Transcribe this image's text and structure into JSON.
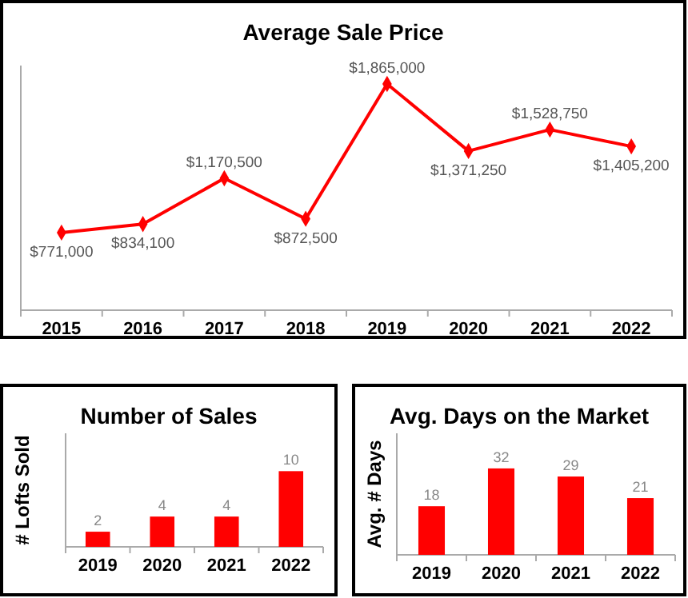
{
  "chart_data": [
    {
      "type": "line",
      "title": "Average Sale Price",
      "categories": [
        "2015",
        "2016",
        "2017",
        "2018",
        "2019",
        "2020",
        "2021",
        "2022"
      ],
      "series": [
        {
          "color": "#ff0000",
          "values": [
            771000,
            834100,
            1170500,
            872500,
            1865000,
            1371250,
            1528750,
            1405200
          ],
          "value_labels": [
            "$771,000",
            "$834,100",
            "$1,170,500",
            "$872,500",
            "$1,865,000",
            "$1,371,250",
            "$1,528,750",
            "$1,405,200"
          ]
        }
      ],
      "ylim": [
        200000,
        2000000
      ],
      "tick_labels": "x",
      "marker": "diamond",
      "line_style": "solid"
    },
    {
      "type": "bar",
      "title": "Number of Sales",
      "ylabel": "# Lofts Sold",
      "categories": [
        "2019",
        "2020",
        "2021",
        "2022"
      ],
      "values": [
        2,
        4,
        4,
        10
      ],
      "color": "#ff0000",
      "ylim": [
        0,
        15
      ],
      "tick_labels": "x",
      "data_labels": true
    },
    {
      "type": "bar",
      "title": "Avg. Days on the Market",
      "ylabel": "Avg. # Days",
      "categories": [
        "2019",
        "2020",
        "2021",
        "2022"
      ],
      "values": [
        18,
        32,
        29,
        21
      ],
      "color": "#ff0000",
      "ylim": [
        0,
        45
      ],
      "tick_labels": "x",
      "data_labels": true
    }
  ]
}
